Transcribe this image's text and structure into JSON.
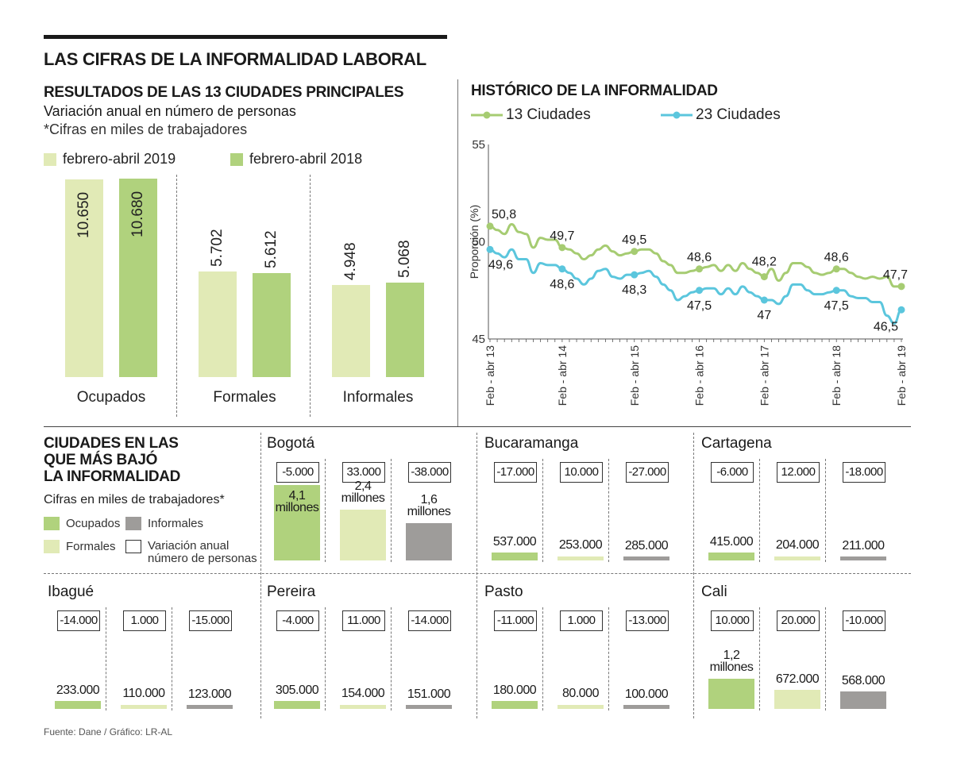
{
  "main_title": "LAS CIFRAS DE LA INFORMALIDAD LABORAL",
  "colors": {
    "light_green": "#e1eab6",
    "green": "#b0d27d",
    "gray": "#9e9c9a",
    "line_13": "#a6cc72",
    "line_23": "#5bc6dd",
    "text": "#1a1a1a"
  },
  "bars_section": {
    "title": "RESULTADOS DE LAS 13 CIUDADES PRINCIPALES",
    "subtitle": "Variación anual en número de personas",
    "note": "*Cifras en miles de trabajadores",
    "legend": [
      {
        "label": "febrero-abril 2019",
        "color": "#e1eab6"
      },
      {
        "label": "febrero-abril 2018",
        "color": "#b0d27d"
      }
    ]
  },
  "line_section": {
    "title": "HISTÓRICO DE LA INFORMALIDAD",
    "legend": [
      {
        "label": "13 Ciudades",
        "color": "#a6cc72"
      },
      {
        "label": "23  Ciudades",
        "color": "#5bc6dd"
      }
    ]
  },
  "chart_data": [
    {
      "type": "bar",
      "title": "RESULTADOS DE LAS 13 CIUDADES PRINCIPALES",
      "subtitle": "Variación anual en número de personas",
      "note": "*Cifras en miles de trabajadores",
      "categories": [
        "Ocupados",
        "Formales",
        "Informales"
      ],
      "series": [
        {
          "name": "febrero-abril 2019",
          "values": [
            10650,
            5702,
            4948
          ],
          "labels": [
            "10.650",
            "5.702",
            "4.948"
          ]
        },
        {
          "name": "febrero-abril 2018",
          "values": [
            10680,
            5612,
            5068
          ],
          "labels": [
            "10.680",
            "5.612",
            "5.068"
          ]
        }
      ],
      "xlabel": "",
      "ylabel": "",
      "ylim": [
        0,
        10680
      ]
    },
    {
      "type": "line",
      "title": "HISTÓRICO DE LA INFORMALIDAD",
      "xlabel": "",
      "ylabel": "Proporción (%)",
      "ylim": [
        45,
        55
      ],
      "yticks": [
        "45",
        "50",
        "55"
      ],
      "x_tick_labels": [
        "Feb - abr 13",
        "Feb - abr 14",
        "Feb - abr 15",
        "Feb - abr 16",
        "Feb - abr 17",
        "Feb - abr 18",
        "Feb - abr 19"
      ],
      "grid": false,
      "legend": "top",
      "series": [
        {
          "name": "13 Ciudades",
          "values": [
            50.8,
            50.6,
            50.4,
            50.9,
            50.5,
            50.4,
            49.7,
            50.2,
            50.1,
            50.1,
            49.7,
            49.6,
            49.4,
            49.1,
            49.3,
            49.6,
            49.8,
            49.5,
            49.3,
            49.4,
            49.5,
            49.6,
            49.6,
            49.4,
            49.0,
            48.8,
            48.4,
            48.4,
            48.5,
            48.6,
            48.7,
            48.8,
            48.5,
            48.8,
            48.5,
            48.9,
            48.6,
            48.4,
            48.2,
            48.6,
            48.0,
            48.4,
            48.9,
            48.9,
            48.7,
            48.4,
            48.3,
            48.4,
            48.6,
            48.6,
            48.4,
            48.2,
            48.1,
            48.2,
            48.1,
            48.2,
            47.7,
            47.7
          ],
          "highlights": [
            {
              "label": "50,8",
              "index": 0,
              "value": 50.8
            },
            {
              "label": "49,7",
              "index": 10,
              "value": 49.7
            },
            {
              "label": "49,5",
              "index": 20,
              "value": 49.5
            },
            {
              "label": "48,6",
              "index": 29,
              "value": 48.6
            },
            {
              "label": "48,2",
              "index": 38,
              "value": 48.2
            },
            {
              "label": "48,6",
              "index": 48,
              "value": 48.6
            },
            {
              "label": "47,7",
              "index": 57,
              "value": 47.7
            }
          ]
        },
        {
          "name": "23 Ciudades",
          "values": [
            49.6,
            49.4,
            49.2,
            49.6,
            49.1,
            49.1,
            48.4,
            48.9,
            48.8,
            48.8,
            48.6,
            48.4,
            48.1,
            47.8,
            48.1,
            48.5,
            48.6,
            48.2,
            48.1,
            48.3,
            48.3,
            48.4,
            48.5,
            48.2,
            47.8,
            47.5,
            47.0,
            47.2,
            47.4,
            47.5,
            47.6,
            47.6,
            47.3,
            47.6,
            47.3,
            47.7,
            47.4,
            47.2,
            47.0,
            47.0,
            46.8,
            47.2,
            47.8,
            47.8,
            47.5,
            47.3,
            47.3,
            47.4,
            47.5,
            47.5,
            47.2,
            47.1,
            47.1,
            46.9,
            46.9,
            46.2,
            45.8,
            46.5
          ],
          "highlights": [
            {
              "label": "49,6",
              "index": 0,
              "value": 49.6
            },
            {
              "label": "48,6",
              "index": 10,
              "value": 48.6
            },
            {
              "label": "48,3",
              "index": 20,
              "value": 48.3
            },
            {
              "label": "47,5",
              "index": 29,
              "value": 47.5
            },
            {
              "label": "47",
              "index": 38,
              "value": 47.0
            },
            {
              "label": "47,5",
              "index": 48,
              "value": 47.5
            },
            {
              "label": "46,5",
              "index": 57,
              "value": 46.5
            }
          ]
        }
      ]
    },
    {
      "type": "bar",
      "title": "CIUDADES EN LAS QUE MÁS BAJÓ LA INFORMALIDAD",
      "note": "Cifras en miles de trabajadores*",
      "categories": [
        "Ocupados",
        "Formales",
        "Informales"
      ],
      "cities": [
        {
          "name": "Bogotá",
          "variation": [
            "-5.000",
            "33.000",
            "-38.000"
          ],
          "labels": [
            "4,1 millones",
            "2,4 millones",
            "1,6 millones"
          ],
          "values": [
            4100000,
            2400000,
            1600000
          ]
        },
        {
          "name": "Bucaramanga",
          "variation": [
            "-17.000",
            "10.000",
            "-27.000"
          ],
          "labels": [
            "537.000",
            "253.000",
            "285.000"
          ],
          "values": [
            537000,
            253000,
            285000
          ]
        },
        {
          "name": "Cartagena",
          "variation": [
            "-6.000",
            "12.000",
            "-18.000"
          ],
          "labels": [
            "415.000",
            "204.000",
            "211.000"
          ],
          "values": [
            415000,
            204000,
            211000
          ]
        },
        {
          "name": "Ibagué",
          "variation": [
            "-14.000",
            "1.000",
            "-15.000"
          ],
          "labels": [
            "233.000",
            "110.000",
            "123.000"
          ],
          "values": [
            233000,
            110000,
            123000
          ]
        },
        {
          "name": "Pereira",
          "variation": [
            "-4.000",
            "11.000",
            "-14.000"
          ],
          "labels": [
            "305.000",
            "154.000",
            "151.000"
          ],
          "values": [
            305000,
            154000,
            151000
          ]
        },
        {
          "name": "Pasto",
          "variation": [
            "-11.000",
            "1.000",
            "-13.000"
          ],
          "labels": [
            "180.000",
            "80.000",
            "100.000"
          ],
          "values": [
            180000,
            80000,
            100000
          ]
        },
        {
          "name": "Cali",
          "variation": [
            "10.000",
            "20.000",
            "-10.000"
          ],
          "labels": [
            "1,2 millones",
            "672.000",
            "568.000"
          ],
          "values": [
            1200000,
            672000,
            568000
          ]
        }
      ]
    }
  ],
  "cities_section": {
    "title_lines": [
      "CIUDADES EN LAS",
      "QUE MÁS BAJÓ",
      "LA INFORMALIDAD"
    ],
    "note": "Cifras en miles de trabajadores*",
    "legend": [
      {
        "label": "Ocupados",
        "color": "#b0d27d"
      },
      {
        "label": "Informales",
        "color": "#9e9c9a"
      },
      {
        "label": "Formales",
        "color": "#e1eab6"
      },
      {
        "label": "Variación anual",
        "label2": "número de personas",
        "color": "#ffffff"
      }
    ]
  },
  "source": "Fuente: Dane / Gráfico: LR-AL"
}
